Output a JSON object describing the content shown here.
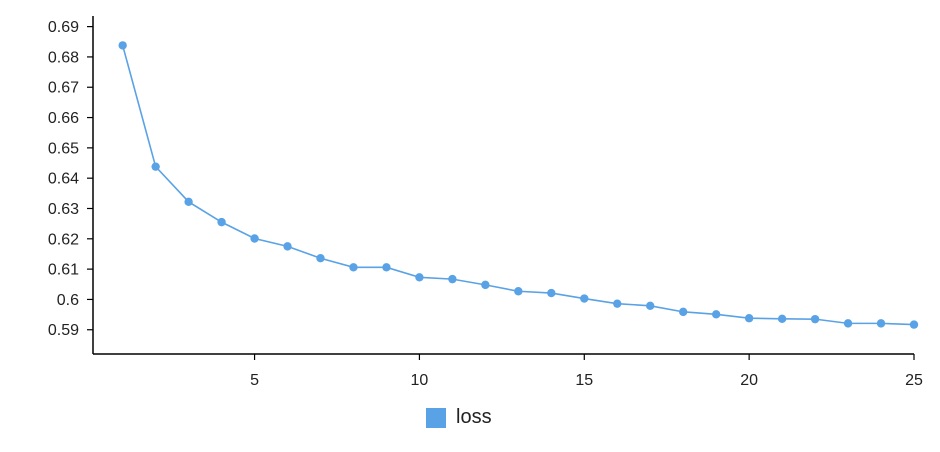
{
  "chart_data": {
    "type": "line",
    "x": [
      1,
      2,
      3,
      4,
      5,
      6,
      7,
      8,
      9,
      10,
      11,
      12,
      13,
      14,
      15,
      16,
      17,
      18,
      19,
      20,
      21,
      22,
      23,
      24,
      25
    ],
    "series": [
      {
        "name": "loss",
        "color": "#5aa2e6",
        "values": [
          0.6838,
          0.6438,
          0.6322,
          0.6255,
          0.6201,
          0.6175,
          0.6136,
          0.6106,
          0.6106,
          0.6073,
          0.6067,
          0.6048,
          0.6027,
          0.6021,
          0.6003,
          0.5986,
          0.5979,
          0.5959,
          0.5951,
          0.5938,
          0.5936,
          0.5935,
          0.5921,
          0.5921,
          0.5917
        ]
      }
    ],
    "xlim": [
      0.1,
      25
    ],
    "ylim": [
      0.582,
      0.6935
    ],
    "xticks": [
      5,
      10,
      15,
      20,
      25
    ],
    "xtick_labels": [
      "5",
      "10",
      "15",
      "20",
      "25"
    ],
    "yticks": [
      0.59,
      0.6,
      0.61,
      0.62,
      0.63,
      0.64,
      0.65,
      0.66,
      0.67,
      0.68,
      0.69
    ],
    "ytick_labels": [
      "0.59",
      "0.6",
      "0.61",
      "0.62",
      "0.63",
      "0.64",
      "0.65",
      "0.66",
      "0.67",
      "0.68",
      "0.69"
    ],
    "grid": false,
    "legend_position": "bottom-center",
    "title": "",
    "xlabel": "",
    "ylabel": ""
  },
  "legend": {
    "label": "loss",
    "color": "#5aa2e6"
  }
}
